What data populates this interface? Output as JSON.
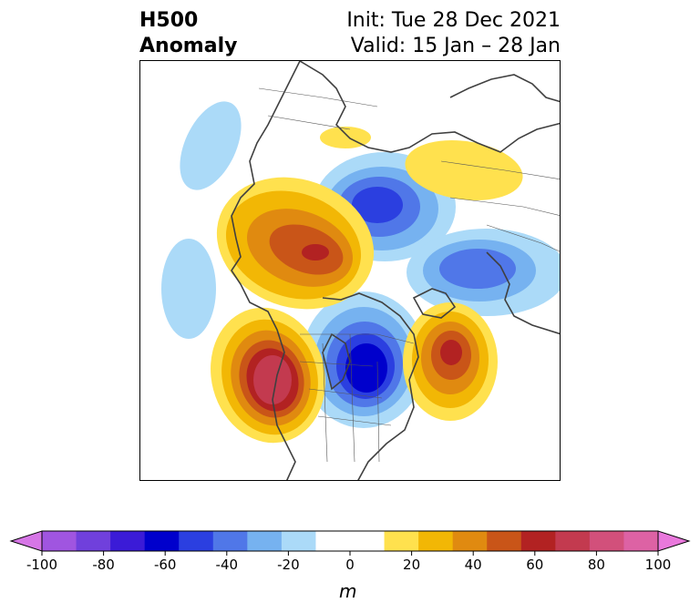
{
  "header": {
    "field_line1": "H500",
    "field_line2": "Anomaly",
    "init_line": "Init: Tue 28 Dec 2021",
    "valid_line": "Valid: 15 Jan – 28 Jan"
  },
  "colorbar": {
    "unit": "m",
    "tick_labels": [
      "-100",
      "-80",
      "-60",
      "-40",
      "-20",
      "0",
      "20",
      "40",
      "60",
      "80",
      "100"
    ],
    "colors": [
      "#d676e6",
      "#a055e0",
      "#7040dc",
      "#3b1bd7",
      "#0000cc",
      "#2b3fe0",
      "#5077e8",
      "#76b2f0",
      "#abdaf8",
      "#ffffff",
      "#ffffff",
      "#ffe14e",
      "#f2b705",
      "#e08a10",
      "#c95518",
      "#b22222",
      "#c33a4f",
      "#d2507b",
      "#dd62a4",
      "#e978dc"
    ]
  },
  "map": {
    "region": "Northern Hemisphere polar stereographic (North America – Arctic – Eurasia)",
    "anomaly_centers": [
      {
        "sign": "positive",
        "level_m": 50,
        "area": "Alaska / Bering Sea"
      },
      {
        "sign": "positive",
        "level_m": 60,
        "area": "North Pacific west of North America"
      },
      {
        "sign": "positive",
        "level_m": 40,
        "area": "North Atlantic"
      },
      {
        "sign": "positive",
        "level_m": 10,
        "area": "Northern Eurasia / Siberia"
      },
      {
        "sign": "negative",
        "level_m": -60,
        "area": "Eastern Canada / Hudson Bay"
      },
      {
        "sign": "negative",
        "level_m": -40,
        "area": "Arctic Ocean"
      },
      {
        "sign": "negative",
        "level_m": -40,
        "area": "Eastern Asia / Japan"
      },
      {
        "sign": "negative",
        "level_m": -20,
        "area": "Western Pacific"
      }
    ]
  }
}
